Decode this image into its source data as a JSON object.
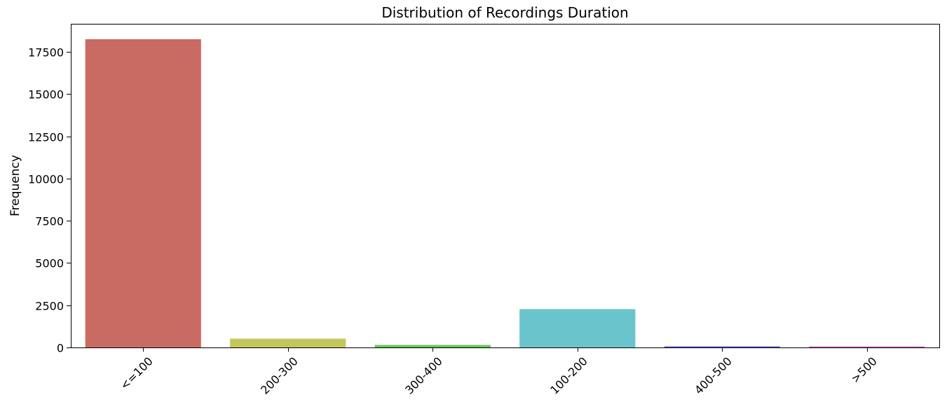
{
  "chart_data": {
    "type": "bar",
    "title": "Distribution of Recordings Duration",
    "xlabel": "",
    "ylabel": "Frequency",
    "categories": [
      "<=100",
      "200-300",
      "300-400",
      "100-200",
      "400-500",
      ">500"
    ],
    "values": [
      18250,
      520,
      150,
      2270,
      60,
      55
    ],
    "colors": [
      "#c96b63",
      "#c2c75c",
      "#67c85b",
      "#69c5cb",
      "#5059c8",
      "#c659c8"
    ],
    "yticks": [
      0,
      2500,
      5000,
      7500,
      10000,
      12500,
      15000,
      17500
    ],
    "ylim": [
      0,
      19162
    ],
    "grid": false,
    "legend": "none",
    "xtick_rotation": -45
  }
}
